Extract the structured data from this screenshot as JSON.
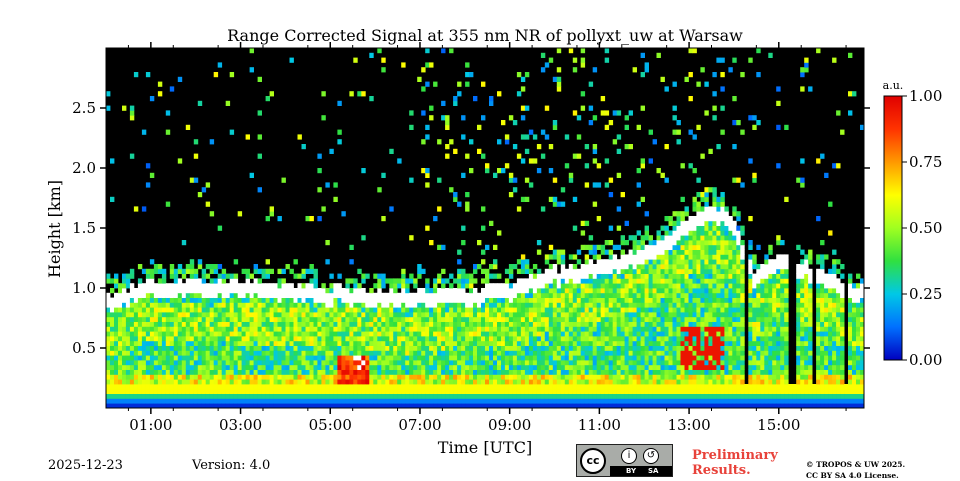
{
  "chart_data": {
    "type": "heatmap",
    "title": "Range Corrected Signal at 355 nm NR of pollyxt_uw at Warsaw",
    "xlabel": "Time [UTC]",
    "ylabel": "Height [km]",
    "xlim_hours": [
      0.0,
      16.9
    ],
    "ylim_km": [
      0.0,
      3.0
    ],
    "x_ticks": [
      {
        "value": 1,
        "label": "01:00"
      },
      {
        "value": 3,
        "label": "03:00"
      },
      {
        "value": 5,
        "label": "05:00"
      },
      {
        "value": 7,
        "label": "07:00"
      },
      {
        "value": 9,
        "label": "09:00"
      },
      {
        "value": 11,
        "label": "11:00"
      },
      {
        "value": 13,
        "label": "13:00"
      },
      {
        "value": 15,
        "label": "15:00"
      }
    ],
    "y_ticks": [
      {
        "value": 0.5,
        "label": "0.5"
      },
      {
        "value": 1.0,
        "label": "1.0"
      },
      {
        "value": 1.5,
        "label": "1.5"
      },
      {
        "value": 2.0,
        "label": "2.0"
      },
      {
        "value": 2.5,
        "label": "2.5"
      }
    ],
    "colorbar": {
      "unit_label": "a.u.",
      "range": [
        0.0,
        1.0
      ],
      "ticks": [
        {
          "value": 0.0,
          "label": "0.00"
        },
        {
          "value": 0.25,
          "label": "0.25"
        },
        {
          "value": 0.5,
          "label": "0.50"
        },
        {
          "value": 0.75,
          "label": "0.75"
        },
        {
          "value": 1.0,
          "label": "1.00"
        }
      ],
      "colors": [
        "#0000bf",
        "#0070ff",
        "#00c8e6",
        "#30e040",
        "#a0ff20",
        "#ffff00",
        "#ff9900",
        "#ff3300",
        "#e00000"
      ]
    },
    "boundary_layer_top_km": [
      {
        "t": 0.0,
        "h": 0.95
      },
      {
        "t": 1.0,
        "h": 1.05
      },
      {
        "t": 3.0,
        "h": 1.05
      },
      {
        "t": 5.0,
        "h": 1.0
      },
      {
        "t": 7.0,
        "h": 0.97
      },
      {
        "t": 9.0,
        "h": 1.02
      },
      {
        "t": 10.0,
        "h": 1.15
      },
      {
        "t": 11.0,
        "h": 1.22
      },
      {
        "t": 12.0,
        "h": 1.35
      },
      {
        "t": 12.5,
        "h": 1.42
      },
      {
        "t": 13.0,
        "h": 1.6
      },
      {
        "t": 13.5,
        "h": 1.72
      },
      {
        "t": 14.0,
        "h": 1.55
      },
      {
        "t": 14.5,
        "h": 1.1
      },
      {
        "t": 15.0,
        "h": 1.3
      },
      {
        "t": 16.9,
        "h": 1.0
      }
    ]
  },
  "footer": {
    "date": "2025-12-23",
    "version": "Version: 4.0",
    "license_badge": {
      "by": "BY",
      "sa": "SA"
    },
    "preliminary_line1": "Preliminary",
    "preliminary_line2": "Results.",
    "copyright_line1": "© TROPOS & UW 2025.",
    "copyright_line2": "CC BY SA 4.0 License."
  }
}
